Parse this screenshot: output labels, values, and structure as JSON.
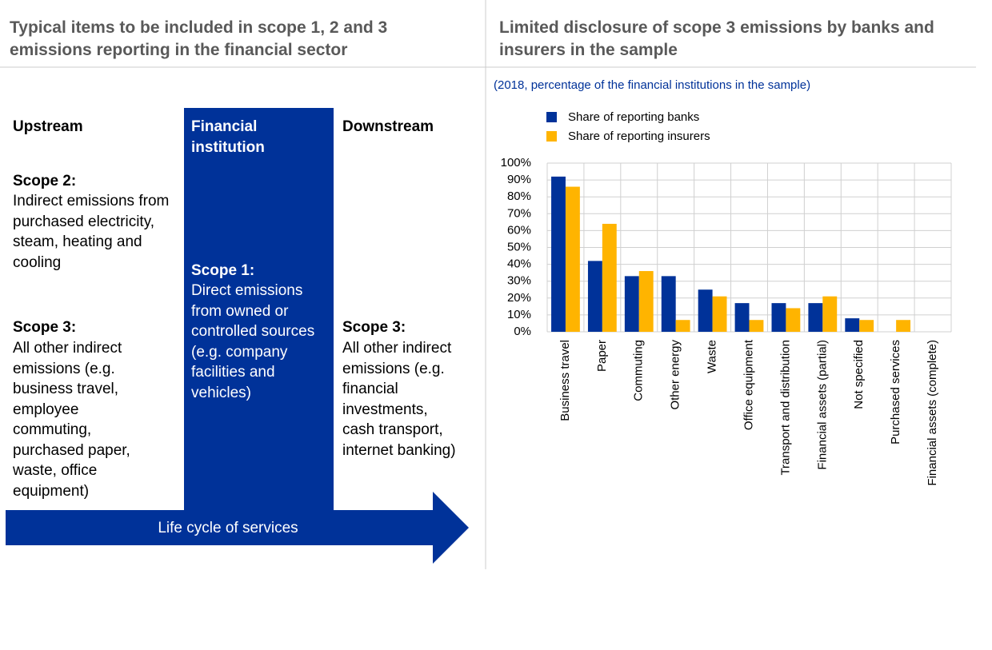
{
  "diagram": {
    "title": "Typical items to be included in scope 1, 2 and 3 emissions reporting in the financial sector",
    "upstream": {
      "heading": "Upstream",
      "scope2_label": "Scope 2:",
      "scope2_text": "Indirect emissions from purchased electricity, steam, heating and cooling",
      "scope3_label": "Scope 3:",
      "scope3_text": "All other indirect emissions (e.g. business travel, employee commuting, purchased paper, waste, office equipment)"
    },
    "institution": {
      "heading": "Financial institution",
      "scope1_label": "Scope 1:",
      "scope1_text": "Direct emissions from owned or controlled sources (e.g. company facilities and vehicles)"
    },
    "downstream": {
      "heading": "Downstream",
      "scope3_label": "Scope 3:",
      "scope3_text": "All other indirect emissions (e.g. financial investments, cash transport, internet banking)"
    },
    "arrow_label": "Life cycle of services"
  },
  "chart_data": {
    "type": "bar",
    "title": "Limited disclosure of scope 3 emissions by banks and insurers in the sample",
    "subtitle": "(2018, percentage of the financial institutions in the sample)",
    "categories": [
      "Business travel",
      "Paper",
      "Commuting",
      "Other energy",
      "Waste",
      "Office equipment",
      "Transport and distribution",
      "Financial assets (partial)",
      "Not specified",
      "Purchased services",
      "Financial assets (complete)"
    ],
    "series": [
      {
        "name": "Share of reporting banks",
        "color": "#003299",
        "values": [
          92,
          42,
          33,
          33,
          25,
          17,
          17,
          17,
          8,
          0,
          0
        ]
      },
      {
        "name": "Share of reporting insurers",
        "color": "#ffb400",
        "values": [
          86,
          64,
          36,
          7,
          21,
          7,
          14,
          21,
          7,
          7,
          0
        ]
      }
    ],
    "ylim": [
      0,
      100
    ],
    "yticks": [
      {
        "value": 0,
        "label": "0%"
      },
      {
        "value": 10,
        "label": "10%"
      },
      {
        "value": 20,
        "label": "20%"
      },
      {
        "value": 30,
        "label": "30%"
      },
      {
        "value": 40,
        "label": "40%"
      },
      {
        "value": 50,
        "label": "50%"
      },
      {
        "value": 60,
        "label": "60%"
      },
      {
        "value": 70,
        "label": "70%"
      },
      {
        "value": 80,
        "label": "80%"
      },
      {
        "value": 90,
        "label": "90%"
      },
      {
        "value": 100,
        "label": "100%"
      }
    ],
    "grid": true,
    "legend": "top-left"
  }
}
